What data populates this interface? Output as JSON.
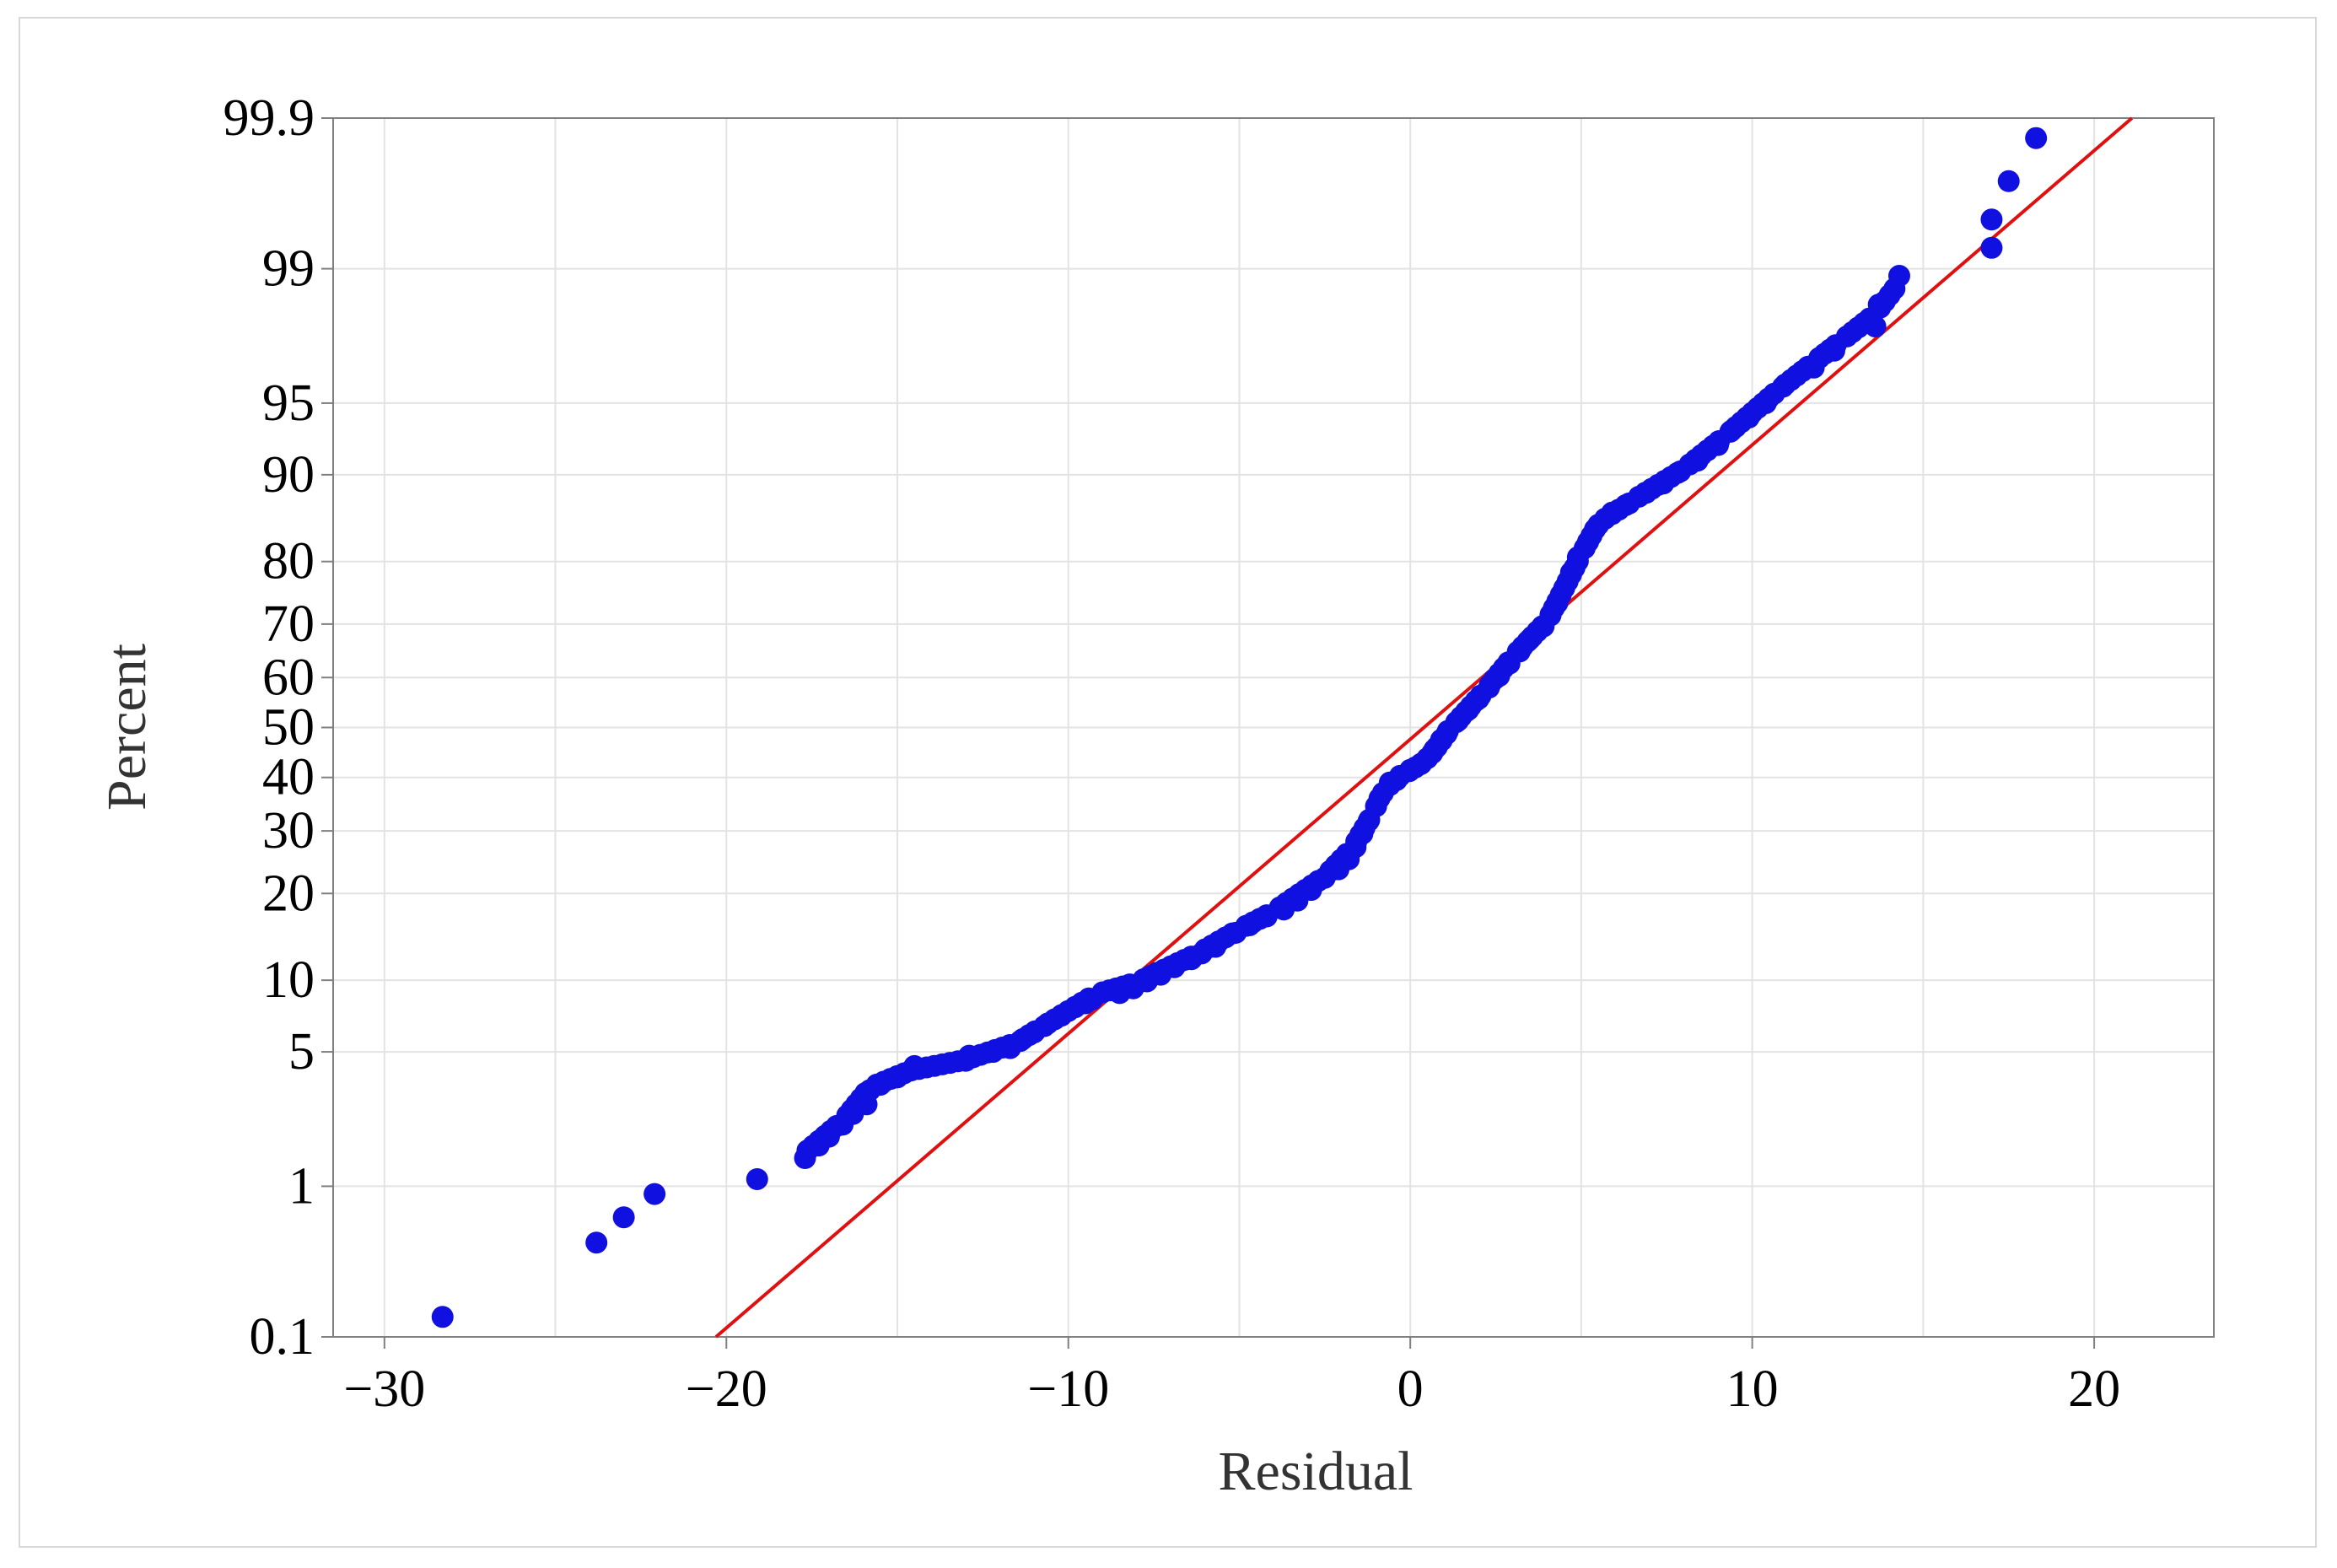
{
  "chart_data": {
    "type": "scatter",
    "subtype": "normal probability plot",
    "xlabel": "Residual",
    "ylabel": "Percent",
    "xlim": [
      -31.5,
      23.5
    ],
    "ylim_percent": [
      0.1,
      99.9
    ],
    "y_scale": "normal probability",
    "grid": true,
    "x_ticks": [
      -30,
      -20,
      -10,
      0,
      10,
      20
    ],
    "x_tick_labels": [
      "−30",
      "−20",
      "−10",
      "0",
      "10",
      "20"
    ],
    "x_minor_grid": [
      -25,
      -15,
      -5,
      5,
      15
    ],
    "y_ticks": [
      0.1,
      1,
      5,
      10,
      20,
      30,
      40,
      50,
      60,
      70,
      80,
      90,
      95,
      99,
      99.9
    ],
    "y_tick_labels": [
      "0.1",
      "1",
      "5",
      "10",
      "20",
      "30",
      "40",
      "50",
      "60",
      "70",
      "80",
      "90",
      "95",
      "99",
      "99.9"
    ],
    "colors": {
      "points": "#1010e0",
      "fit_line": "#e01010",
      "grid": "#e3e3e3",
      "axis": "#808080"
    },
    "fit_line": {
      "mean": 0.4,
      "sd": 6.7
    },
    "anchors": [
      [
        -28.3,
        0.14
      ],
      [
        -23.8,
        0.45
      ],
      [
        -23.0,
        0.65
      ],
      [
        -22.1,
        0.9
      ],
      [
        -19.1,
        1.1
      ],
      [
        -17.8,
        1.5
      ],
      [
        -16.6,
        2.3
      ],
      [
        -15.8,
        3.4
      ],
      [
        -14.6,
        4.1
      ],
      [
        -13.0,
        4.6
      ],
      [
        -11.5,
        5.5
      ],
      [
        -10.8,
        6.4
      ],
      [
        -9.2,
        8.8
      ],
      [
        -8.0,
        9.8
      ],
      [
        -6.2,
        12.6
      ],
      [
        -5.0,
        15.3
      ],
      [
        -4.0,
        17.5
      ],
      [
        -2.5,
        22.5
      ],
      [
        -1.7,
        27.0
      ],
      [
        -1.1,
        33.0
      ],
      [
        -0.8,
        37.5
      ],
      [
        -0.2,
        40.5
      ],
      [
        0.5,
        43.5
      ],
      [
        1.2,
        50.0
      ],
      [
        2.2,
        57.5
      ],
      [
        3.0,
        64.0
      ],
      [
        4.0,
        70.5
      ],
      [
        4.5,
        76.0
      ],
      [
        5.0,
        81.0
      ],
      [
        5.5,
        85.0
      ],
      [
        6.5,
        87.5
      ],
      [
        8.0,
        90.5
      ],
      [
        9.2,
        93.0
      ],
      [
        10.8,
        95.7
      ],
      [
        11.8,
        96.8
      ],
      [
        12.6,
        97.5
      ],
      [
        13.6,
        98.2
      ],
      [
        14.3,
        98.8
      ]
    ],
    "points": [
      [
        -28.3,
        0.14
      ],
      [
        -23.8,
        0.45
      ],
      [
        -23.0,
        0.65
      ],
      [
        -22.1,
        0.9
      ],
      [
        -19.1,
        1.1
      ],
      [
        -17.7,
        1.45
      ],
      [
        -17.3,
        1.7
      ],
      [
        -17.0,
        1.9
      ],
      [
        -16.6,
        2.2
      ],
      [
        -16.3,
        2.5
      ],
      [
        -15.9,
        2.8
      ],
      [
        -15.8,
        3.3
      ],
      [
        -15.5,
        3.5
      ],
      [
        -15.0,
        3.8
      ],
      [
        -14.6,
        4.1
      ],
      [
        -14.5,
        4.3
      ],
      [
        -13.0,
        4.55
      ],
      [
        -12.9,
        4.8
      ],
      [
        -12.2,
        5.0
      ],
      [
        -11.7,
        5.2
      ],
      [
        -11.4,
        5.6
      ],
      [
        -11.0,
        6.1
      ],
      [
        -10.7,
        6.5
      ],
      [
        -10.2,
        7.2
      ],
      [
        -9.8,
        7.8
      ],
      [
        -9.5,
        8.1
      ],
      [
        -9.3,
        8.4
      ],
      [
        -8.5,
        8.9
      ],
      [
        -8.1,
        9.3
      ],
      [
        -7.7,
        9.9
      ],
      [
        -7.3,
        10.5
      ],
      [
        -6.9,
        11.2
      ],
      [
        -6.4,
        12.0
      ],
      [
        -6.1,
        12.6
      ],
      [
        -5.7,
        13.3
      ],
      [
        -5.1,
        14.9
      ],
      [
        -4.7,
        15.8
      ],
      [
        -4.2,
        16.9
      ],
      [
        -3.7,
        17.8
      ],
      [
        -3.3,
        19.0
      ],
      [
        -2.9,
        20.5
      ],
      [
        -2.5,
        22.3
      ],
      [
        -2.1,
        23.6
      ],
      [
        -1.8,
        25.2
      ],
      [
        -1.6,
        27.2
      ],
      [
        -1.4,
        29.5
      ],
      [
        -1.2,
        32.0
      ],
      [
        -1.0,
        34.5
      ],
      [
        -0.8,
        37.0
      ],
      [
        -0.6,
        39.0
      ],
      [
        -0.3,
        40.3
      ],
      [
        0.0,
        41.5
      ],
      [
        0.3,
        42.6
      ],
      [
        0.5,
        43.8
      ],
      [
        0.7,
        45.5
      ],
      [
        0.9,
        47.5
      ],
      [
        1.1,
        49.3
      ],
      [
        1.4,
        51.4
      ],
      [
        1.7,
        53.6
      ],
      [
        2.0,
        55.8
      ],
      [
        2.3,
        58.0
      ],
      [
        2.6,
        60.3
      ],
      [
        2.9,
        62.7
      ],
      [
        3.2,
        65.0
      ],
      [
        3.5,
        67.3
      ],
      [
        3.9,
        69.6
      ],
      [
        4.1,
        71.5
      ],
      [
        4.3,
        73.6
      ],
      [
        4.5,
        76.0
      ],
      [
        4.7,
        78.4
      ],
      [
        4.9,
        80.6
      ],
      [
        5.2,
        82.7
      ],
      [
        5.5,
        84.8
      ],
      [
        5.9,
        86.2
      ],
      [
        6.4,
        87.2
      ],
      [
        6.9,
        88.3
      ],
      [
        7.4,
        89.2
      ],
      [
        7.9,
        90.3
      ],
      [
        8.4,
        91.2
      ],
      [
        9.0,
        92.4
      ],
      [
        9.4,
        93.4
      ],
      [
        9.9,
        94.2
      ],
      [
        10.4,
        95.0
      ],
      [
        10.9,
        95.8
      ],
      [
        11.8,
        96.6
      ],
      [
        12.4,
        97.2
      ],
      [
        13.6,
        97.9
      ],
      [
        13.7,
        98.4
      ],
      [
        14.3,
        98.9
      ],
      [
        17.0,
        99.25
      ],
      [
        17.0,
        99.5
      ],
      [
        17.5,
        99.72
      ],
      [
        18.3,
        99.86
      ]
    ]
  }
}
